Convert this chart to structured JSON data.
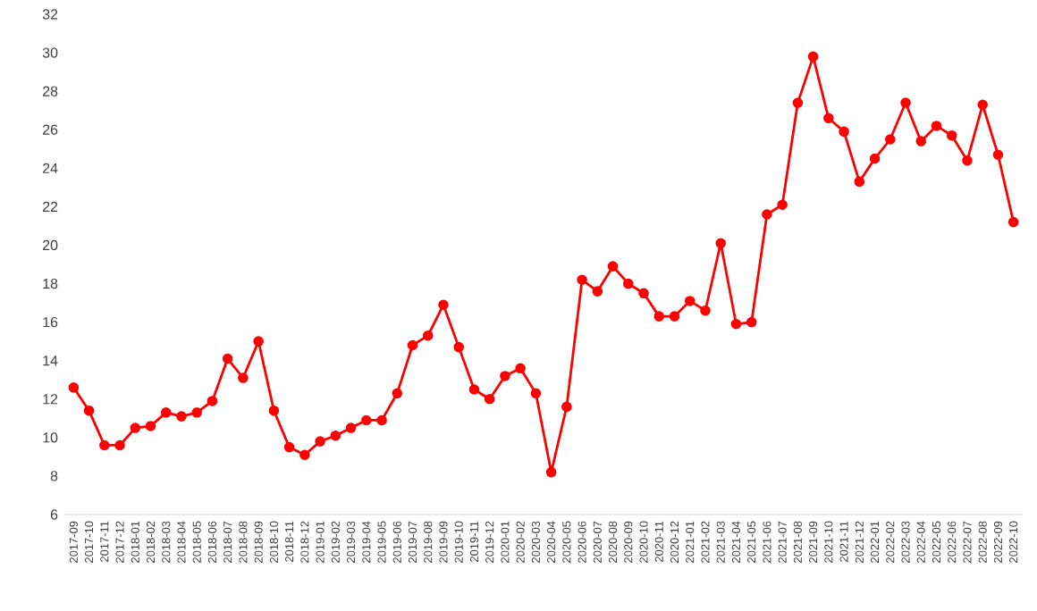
{
  "chart_data": {
    "type": "line",
    "categories": [
      "2017-09",
      "2017-10",
      "2017-11",
      "2017-12",
      "2018-01",
      "2018-02",
      "2018-03",
      "2018-04",
      "2018-05",
      "2018-06",
      "2018-07",
      "2018-08",
      "2018-09",
      "2018-10",
      "2018-11",
      "2018-12",
      "2019-01",
      "2019-02",
      "2019-03",
      "2019-04",
      "2019-05",
      "2019-06",
      "2019-07",
      "2019-08",
      "2019-09",
      "2019-10",
      "2019-11",
      "2019-12",
      "2020-01",
      "2020-02",
      "2020-03",
      "2020-04",
      "2020-05",
      "2020-06",
      "2020-07",
      "2020-08",
      "2020-09",
      "2020-10",
      "2020-11",
      "2020-12",
      "2021-01",
      "2021-02",
      "2021-03",
      "2021-04",
      "2021-05",
      "2021-06",
      "2021-07",
      "2021-08",
      "2021-09",
      "2021-10",
      "2021-11",
      "2021-12",
      "2022-01",
      "2022-02",
      "2022-03",
      "2022-04",
      "2022-05",
      "2022-06",
      "2022-07",
      "2022-08",
      "2022-09",
      "2022-10"
    ],
    "series": [
      {
        "color": "#ff0000",
        "values": [
          12.6,
          11.4,
          9.6,
          9.6,
          10.5,
          10.6,
          11.3,
          11.1,
          11.3,
          11.9,
          14.1,
          13.1,
          15.0,
          11.4,
          9.5,
          9.1,
          9.8,
          10.1,
          10.5,
          10.9,
          10.9,
          12.3,
          14.8,
          15.3,
          16.9,
          14.7,
          12.5,
          12.0,
          13.2,
          13.6,
          12.3,
          8.2,
          11.6,
          18.2,
          17.6,
          18.9,
          18.0,
          17.5,
          16.3,
          16.3,
          17.1,
          16.6,
          20.1,
          15.9,
          16.0,
          21.6,
          22.1,
          27.4,
          29.8,
          26.6,
          25.9,
          23.3,
          24.5,
          25.5,
          27.4,
          25.4,
          26.2,
          25.7,
          24.4,
          27.3,
          24.7,
          21.2
        ]
      }
    ],
    "ylim": [
      6,
      32
    ],
    "yticks": [
      6,
      8,
      10,
      12,
      14,
      16,
      18,
      20,
      22,
      24,
      26,
      28,
      30,
      32
    ],
    "marker": "circle",
    "line_style": "solid"
  }
}
